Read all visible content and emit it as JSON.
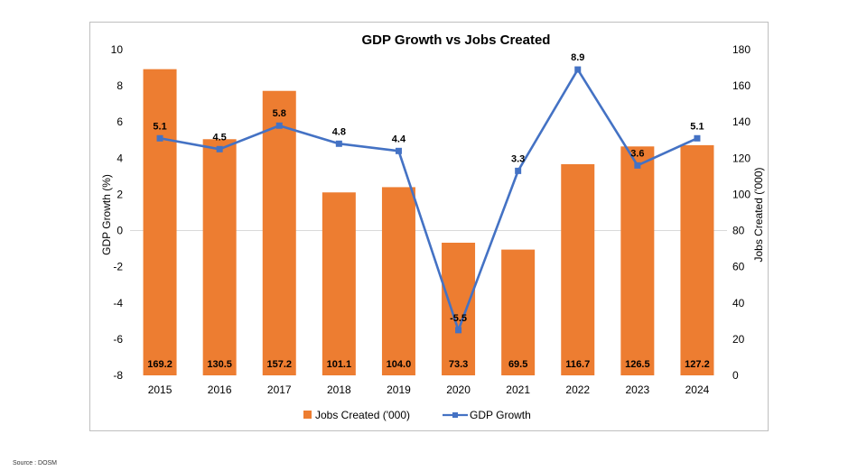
{
  "source_note": "Source : DOSM",
  "colors": {
    "bars": "#ed7d31",
    "line": "#4472c4",
    "text": "#000000",
    "zero_line": "#d9d9d9"
  },
  "chart_data": {
    "type": "bar",
    "title": "GDP Growth vs Jobs Created",
    "categories": [
      "2015",
      "2016",
      "2017",
      "2018",
      "2019",
      "2020",
      "2021",
      "2022",
      "2023",
      "2024"
    ],
    "series": [
      {
        "name": "Jobs Created ('000)",
        "type": "bar",
        "axis": "right",
        "values": [
          169.2,
          130.5,
          157.2,
          101.1,
          104.0,
          73.3,
          69.5,
          116.7,
          126.5,
          127.2
        ],
        "labels": [
          "169.2",
          "130.5",
          "157.2",
          "101.1",
          "104.0",
          "73.3",
          "69.5",
          "116.7",
          "126.5",
          "127.2"
        ]
      },
      {
        "name": "GDP Growth",
        "type": "line",
        "axis": "left",
        "values": [
          5.1,
          4.5,
          5.8,
          4.8,
          4.4,
          -5.5,
          3.3,
          8.9,
          3.6,
          5.1
        ],
        "labels": [
          "5.1",
          "4.5",
          "5.8",
          "4.8",
          "4.4",
          "-5.5",
          "3.3",
          "8.9",
          "3.6",
          "5.1"
        ]
      }
    ],
    "y_left": {
      "label": "GDP Growth (%)",
      "range": [
        -8,
        10
      ],
      "ticks": [
        "-8",
        "-6",
        "-4",
        "-2",
        "0",
        "2",
        "4",
        "6",
        "8",
        "10"
      ]
    },
    "y_right": {
      "label": "Jobs Created ('000)",
      "range": [
        0,
        180
      ],
      "ticks": [
        "0",
        "20",
        "40",
        "60",
        "80",
        "100",
        "120",
        "140",
        "160",
        "180"
      ]
    },
    "legend_position": "bottom",
    "grid": false
  }
}
